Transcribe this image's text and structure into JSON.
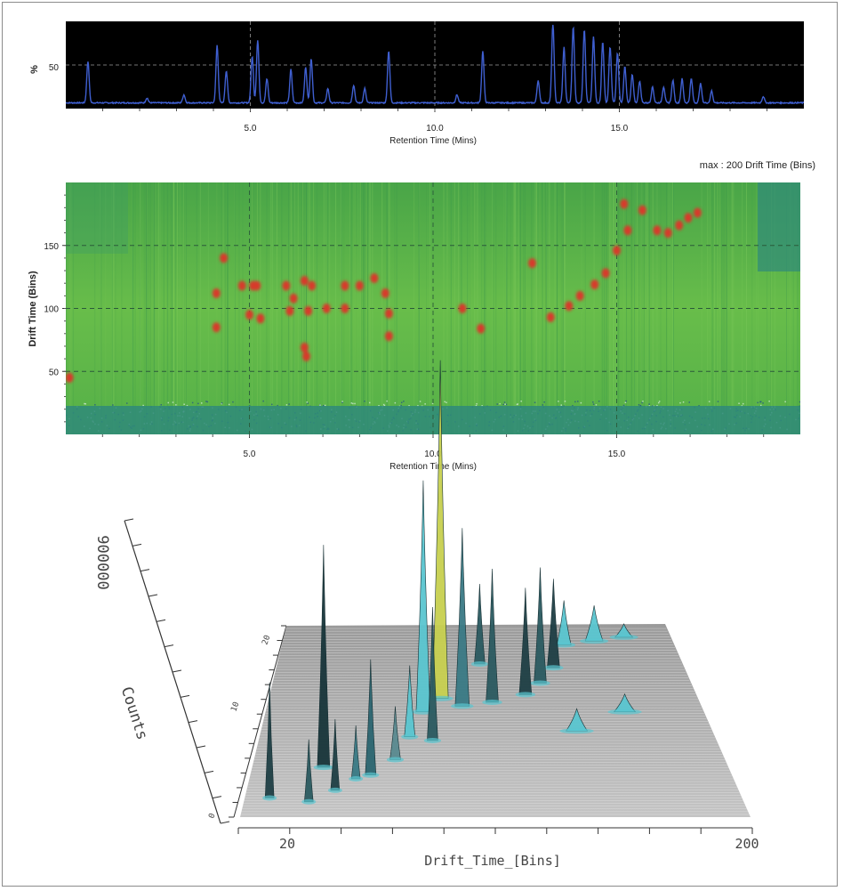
{
  "chart_data": [
    {
      "type": "line",
      "panel": "chromatogram",
      "ylabel": "%",
      "xlabel": "Retention Time (Mins)",
      "x_ticks": [
        "5.0",
        "10.0",
        "15.0"
      ],
      "y_ticks": [
        "50"
      ],
      "xlim": [
        0,
        20
      ],
      "ylim": [
        0,
        100
      ],
      "background": "#000000",
      "line_color": "#3f5fd0",
      "grid": true,
      "peaks": [
        {
          "x": 0.6,
          "y": 52
        },
        {
          "x": 2.2,
          "y": 6
        },
        {
          "x": 3.2,
          "y": 10
        },
        {
          "x": 4.1,
          "y": 72
        },
        {
          "x": 4.35,
          "y": 40
        },
        {
          "x": 5.05,
          "y": 58
        },
        {
          "x": 5.2,
          "y": 78
        },
        {
          "x": 5.45,
          "y": 30
        },
        {
          "x": 6.1,
          "y": 42
        },
        {
          "x": 6.5,
          "y": 45
        },
        {
          "x": 6.65,
          "y": 55
        },
        {
          "x": 7.1,
          "y": 18
        },
        {
          "x": 7.8,
          "y": 22
        },
        {
          "x": 8.1,
          "y": 18
        },
        {
          "x": 8.75,
          "y": 65
        },
        {
          "x": 10.6,
          "y": 10
        },
        {
          "x": 11.3,
          "y": 65
        },
        {
          "x": 12.8,
          "y": 28
        },
        {
          "x": 13.2,
          "y": 100
        },
        {
          "x": 13.5,
          "y": 70
        },
        {
          "x": 13.75,
          "y": 95
        },
        {
          "x": 14.05,
          "y": 92
        },
        {
          "x": 14.3,
          "y": 83
        },
        {
          "x": 14.55,
          "y": 76
        },
        {
          "x": 14.75,
          "y": 70
        },
        {
          "x": 14.95,
          "y": 62
        },
        {
          "x": 15.15,
          "y": 45
        },
        {
          "x": 15.35,
          "y": 35
        },
        {
          "x": 15.55,
          "y": 27
        },
        {
          "x": 15.9,
          "y": 20
        },
        {
          "x": 16.2,
          "y": 20
        },
        {
          "x": 16.45,
          "y": 28
        },
        {
          "x": 16.7,
          "y": 30
        },
        {
          "x": 16.95,
          "y": 30
        },
        {
          "x": 17.2,
          "y": 24
        },
        {
          "x": 17.5,
          "y": 15
        },
        {
          "x": 18.9,
          "y": 8
        }
      ]
    },
    {
      "type": "heatmap",
      "panel": "driftscope",
      "title_right": "max : 200 Drift Time (Bins)",
      "ylabel": "Drift Time (Bins)",
      "xlabel": "Retention Time (Mins)",
      "x_ticks": [
        "5.0",
        "10.0",
        "15.0"
      ],
      "y_ticks": [
        "50",
        "100",
        "150"
      ],
      "xlim": [
        0,
        20
      ],
      "ylim": [
        0,
        200
      ],
      "grid": true,
      "colors": {
        "background": "#5db84a",
        "band": "#2f8a7a",
        "spot": "#d73a2a"
      },
      "spots": [
        {
          "x": 0.1,
          "y": 45
        },
        {
          "x": 4.3,
          "y": 140
        },
        {
          "x": 4.1,
          "y": 112
        },
        {
          "x": 4.1,
          "y": 85
        },
        {
          "x": 4.8,
          "y": 118
        },
        {
          "x": 5.1,
          "y": 118
        },
        {
          "x": 5.2,
          "y": 118
        },
        {
          "x": 5.0,
          "y": 95
        },
        {
          "x": 5.3,
          "y": 92
        },
        {
          "x": 6.0,
          "y": 118
        },
        {
          "x": 6.5,
          "y": 122
        },
        {
          "x": 6.7,
          "y": 118
        },
        {
          "x": 6.2,
          "y": 108
        },
        {
          "x": 6.1,
          "y": 98
        },
        {
          "x": 6.6,
          "y": 98
        },
        {
          "x": 7.1,
          "y": 100
        },
        {
          "x": 6.5,
          "y": 69
        },
        {
          "x": 6.55,
          "y": 62
        },
        {
          "x": 7.6,
          "y": 118
        },
        {
          "x": 7.6,
          "y": 100
        },
        {
          "x": 8.0,
          "y": 118
        },
        {
          "x": 8.4,
          "y": 124
        },
        {
          "x": 8.7,
          "y": 112
        },
        {
          "x": 8.8,
          "y": 96
        },
        {
          "x": 8.8,
          "y": 78
        },
        {
          "x": 11.3,
          "y": 84
        },
        {
          "x": 10.8,
          "y": 100
        },
        {
          "x": 12.7,
          "y": 136
        },
        {
          "x": 13.2,
          "y": 93
        },
        {
          "x": 13.7,
          "y": 102
        },
        {
          "x": 14.0,
          "y": 110
        },
        {
          "x": 14.4,
          "y": 119
        },
        {
          "x": 14.7,
          "y": 128
        },
        {
          "x": 15.0,
          "y": 146
        },
        {
          "x": 15.3,
          "y": 162
        },
        {
          "x": 15.2,
          "y": 183
        },
        {
          "x": 15.7,
          "y": 178
        },
        {
          "x": 16.1,
          "y": 162
        },
        {
          "x": 16.4,
          "y": 160
        },
        {
          "x": 16.7,
          "y": 166
        },
        {
          "x": 16.95,
          "y": 172
        },
        {
          "x": 17.2,
          "y": 176
        }
      ]
    },
    {
      "type": "surface3d",
      "panel": "3d-view",
      "zlabel": "Counts",
      "z_tick_label": "900000",
      "xlabel": "Drift_Time_[Bins]",
      "x_range_labels": [
        "20",
        "200"
      ],
      "depth_tick_labels": [
        "0",
        "10",
        "20"
      ],
      "colors": {
        "plane": "#b8b8b8",
        "peak_teal": "#5ac6d0",
        "peak_dark": "#1f3f45",
        "peak_yellow": "#d8d84a"
      },
      "peaks": [
        {
          "d": 0.05,
          "r": 0.9,
          "h": 130,
          "w": 5,
          "color": "#1f3f45"
        },
        {
          "d": 0.13,
          "r": 0.92,
          "h": 70,
          "w": 5,
          "color": "#2b5a60"
        },
        {
          "d": 0.18,
          "r": 0.86,
          "h": 80,
          "w": 5,
          "color": "#1f3f45"
        },
        {
          "d": 0.22,
          "r": 0.8,
          "h": 60,
          "w": 5,
          "color": "#3a7a85"
        },
        {
          "d": 0.15,
          "r": 0.74,
          "h": 250,
          "w": 7,
          "color": "#18353a"
        },
        {
          "d": 0.25,
          "r": 0.78,
          "h": 130,
          "w": 6,
          "color": "#2b6570"
        },
        {
          "d": 0.3,
          "r": 0.7,
          "h": 60,
          "w": 6,
          "color": "#5a8a90"
        },
        {
          "d": 0.33,
          "r": 0.58,
          "h": 80,
          "w": 6,
          "color": "#5ac6d0"
        },
        {
          "d": 0.38,
          "r": 0.6,
          "h": 150,
          "w": 6,
          "color": "#2b5a60"
        },
        {
          "d": 0.36,
          "r": 0.45,
          "h": 260,
          "w": 8,
          "color": "#5ac6d0"
        },
        {
          "d": 0.4,
          "r": 0.38,
          "h": 380,
          "w": 9,
          "color": "#c8d050"
        },
        {
          "d": 0.45,
          "r": 0.42,
          "h": 200,
          "w": 8,
          "color": "#3a7a85"
        },
        {
          "d": 0.52,
          "r": 0.4,
          "h": 150,
          "w": 7,
          "color": "#2b5a60"
        },
        {
          "d": 0.5,
          "r": 0.2,
          "h": 90,
          "w": 6,
          "color": "#2b5a60"
        },
        {
          "d": 0.6,
          "r": 0.36,
          "h": 120,
          "w": 7,
          "color": "#1f3f45"
        },
        {
          "d": 0.64,
          "r": 0.3,
          "h": 130,
          "w": 7,
          "color": "#2b5a60"
        },
        {
          "d": 0.68,
          "r": 0.22,
          "h": 100,
          "w": 7,
          "color": "#1f3f45"
        },
        {
          "d": 0.72,
          "r": 0.1,
          "h": 50,
          "w": 8,
          "color": "#5ac6d0"
        },
        {
          "d": 0.8,
          "r": 0.08,
          "h": 40,
          "w": 10,
          "color": "#5ac6d0"
        },
        {
          "d": 0.88,
          "r": 0.06,
          "h": 15,
          "w": 10,
          "color": "#5ac6d0"
        },
        {
          "d": 0.7,
          "r": 0.55,
          "h": 25,
          "w": 12,
          "color": "#5ac6d0"
        },
        {
          "d": 0.82,
          "r": 0.45,
          "h": 20,
          "w": 12,
          "color": "#5ac6d0"
        }
      ]
    }
  ]
}
